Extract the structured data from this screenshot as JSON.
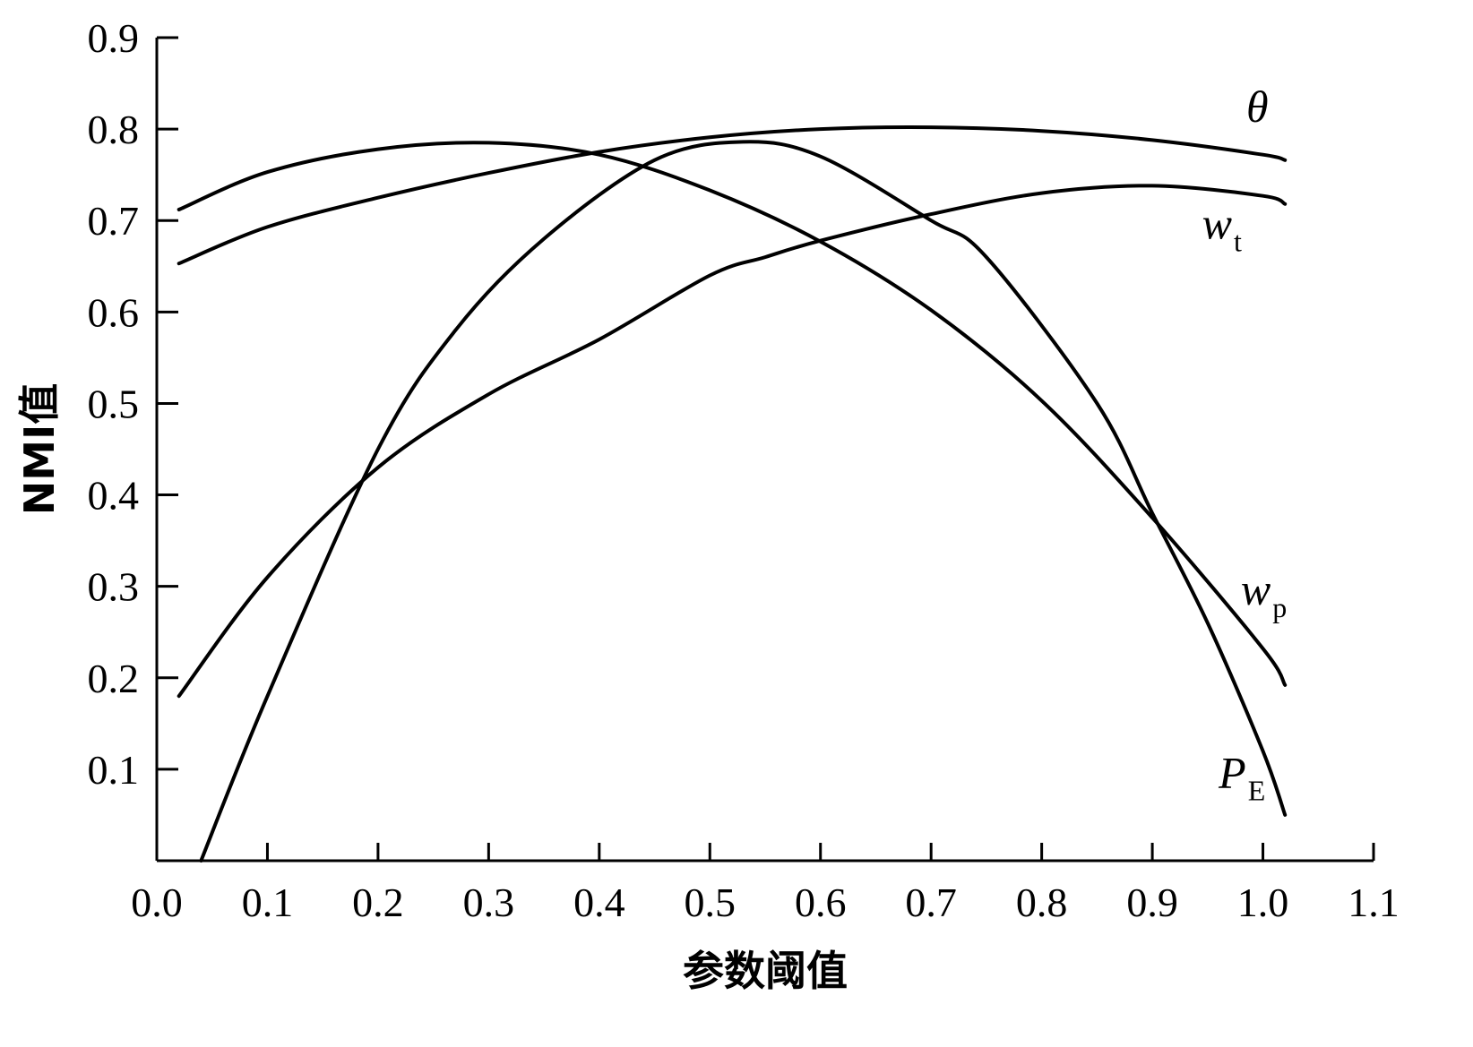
{
  "chart_data": {
    "type": "line",
    "title": "",
    "xlabel": "参数阈值",
    "ylabel": "NMI值",
    "xlim": [
      0.0,
      1.1
    ],
    "ylim": [
      0.0,
      0.9
    ],
    "grid": false,
    "legend": "inline labels at right end of curves",
    "xticks": [
      "0.0",
      "0.1",
      "0.2",
      "0.3",
      "0.4",
      "0.5",
      "0.6",
      "0.7",
      "0.8",
      "0.9",
      "1.0",
      "1.1"
    ],
    "yticks": [
      "0.1",
      "0.2",
      "0.3",
      "0.4",
      "0.5",
      "0.6",
      "0.7",
      "0.8",
      "0.9"
    ],
    "series": [
      {
        "name": "θ",
        "label": {
          "sym": "θ",
          "sub": ""
        },
        "x": [
          0.02,
          0.1,
          0.2,
          0.3,
          0.4,
          0.5,
          0.6,
          0.7,
          0.8,
          0.9,
          1.0,
          1.02
        ],
        "y": [
          0.653,
          0.693,
          0.725,
          0.752,
          0.775,
          0.791,
          0.8,
          0.802,
          0.798,
          0.788,
          0.772,
          0.766
        ]
      },
      {
        "name": "wt",
        "label": {
          "sym": "w",
          "sub": "t"
        },
        "x": [
          0.02,
          0.1,
          0.2,
          0.3,
          0.4,
          0.5,
          0.55,
          0.6,
          0.7,
          0.8,
          0.9,
          1.0,
          1.02
        ],
        "y": [
          0.18,
          0.31,
          0.43,
          0.51,
          0.57,
          0.64,
          0.66,
          0.678,
          0.707,
          0.73,
          0.738,
          0.727,
          0.718
        ]
      },
      {
        "name": "wp",
        "label": {
          "sym": "w",
          "sub": "p"
        },
        "x": [
          0.02,
          0.1,
          0.2,
          0.3,
          0.4,
          0.5,
          0.6,
          0.7,
          0.8,
          0.9,
          1.0,
          1.02
        ],
        "y": [
          0.712,
          0.753,
          0.778,
          0.785,
          0.772,
          0.733,
          0.677,
          0.602,
          0.503,
          0.375,
          0.232,
          0.192
        ]
      },
      {
        "name": "PE",
        "label": {
          "sym": "P",
          "sub": "E"
        },
        "x": [
          0.04,
          0.1,
          0.2,
          0.27,
          0.35,
          0.45,
          0.53,
          0.6,
          0.7,
          0.75,
          0.85,
          0.9,
          0.95,
          1.0,
          1.02
        ],
        "y": [
          0.0,
          0.18,
          0.45,
          0.58,
          0.68,
          0.766,
          0.786,
          0.77,
          0.7,
          0.66,
          0.5,
          0.38,
          0.26,
          0.12,
          0.05
        ]
      }
    ]
  }
}
